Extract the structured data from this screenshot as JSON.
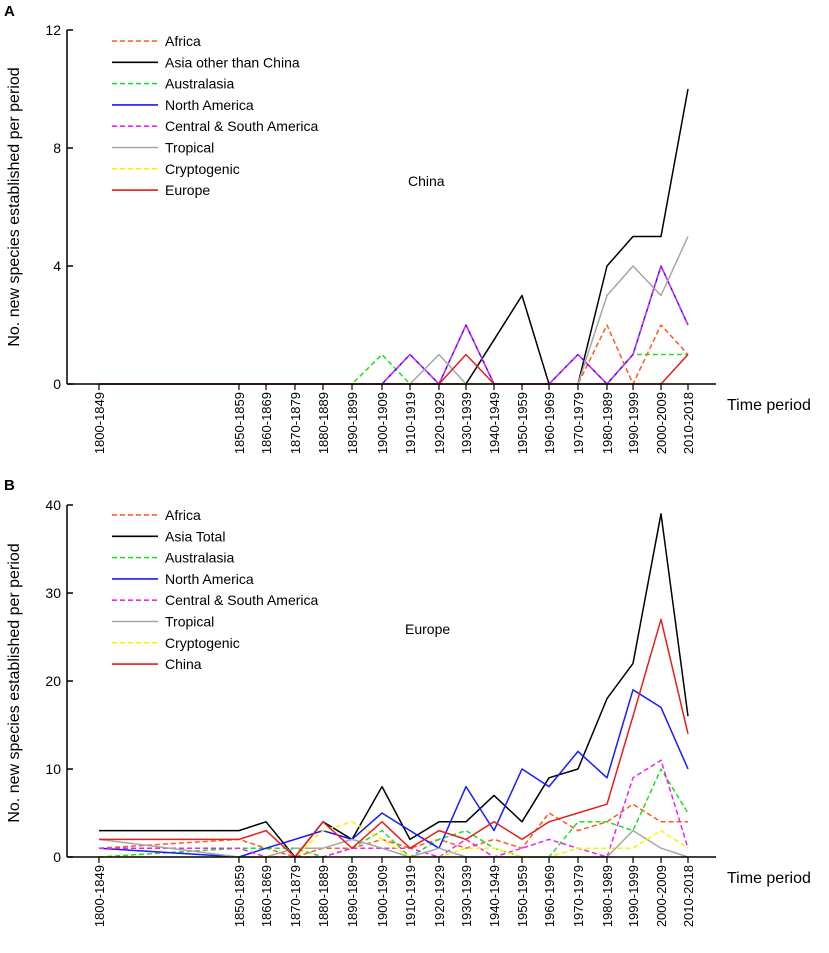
{
  "chart_data": [
    {
      "panel": "A",
      "type": "line",
      "annotation": "China",
      "ylabel": "No. new species established per period",
      "xlabel": "Time period",
      "ylim": [
        0,
        12
      ],
      "yticks": [
        0,
        4,
        8,
        12
      ],
      "categories": [
        "1800-1849",
        "1850-1859",
        "1860-1869",
        "1870-1879",
        "1880-1889",
        "1890-1899",
        "1900-1909",
        "1910-1919",
        "1920-1929",
        "1930-1939",
        "1940-1949",
        "1950-1959",
        "1960-1969",
        "1970-1979",
        "1980-1989",
        "1990-1999",
        "2000-2009",
        "2010-2018"
      ],
      "series": [
        {
          "name": "Africa",
          "color": "#ff5a1e",
          "dashed": true,
          "values": [
            0,
            0,
            0,
            0,
            0,
            0,
            0,
            0,
            0,
            0,
            0,
            0,
            0,
            0,
            2,
            0,
            2,
            1
          ]
        },
        {
          "name": "Asia other than China",
          "color": "#000000",
          "dashed": false,
          "values": [
            0,
            0,
            0,
            0,
            0,
            0,
            0,
            0,
            0,
            0,
            1.5,
            3,
            0,
            0,
            4,
            5,
            5,
            10
          ]
        },
        {
          "name": "Australasia",
          "color": "#22dd22",
          "dashed": true,
          "values": [
            0,
            0,
            0,
            0,
            0,
            0,
            1,
            0,
            0,
            0,
            0,
            0,
            0,
            0,
            0,
            1,
            1,
            1
          ]
        },
        {
          "name": "North America",
          "color": "#1a1aff",
          "dashed": false,
          "values": [
            0,
            0,
            0,
            0,
            0,
            0,
            0,
            1,
            0,
            2,
            0,
            0,
            0,
            1,
            0,
            1,
            4,
            2
          ]
        },
        {
          "name": "Central & South America",
          "color": "#ee22ee",
          "dashed": true,
          "values": [
            0,
            0,
            0,
            0,
            0,
            0,
            0,
            1,
            0,
            2,
            0,
            0,
            0,
            1,
            0,
            1,
            4,
            2
          ]
        },
        {
          "name": "Tropical",
          "color": "#a6a6a6",
          "dashed": false,
          "values": [
            0,
            0,
            0,
            0,
            0,
            0,
            0,
            0,
            1,
            0,
            0,
            0,
            0,
            0,
            3,
            4,
            3,
            5
          ]
        },
        {
          "name": "Cryptogenic",
          "color": "#f5f500",
          "dashed": true,
          "values": [
            0,
            0,
            0,
            0,
            0,
            0,
            0,
            0,
            0,
            0,
            0,
            0,
            0,
            0,
            0,
            0,
            0,
            0
          ]
        },
        {
          "name": "Europe",
          "color": "#e61e1e",
          "dashed": false,
          "values": [
            0,
            0,
            0,
            0,
            0,
            0,
            0,
            0,
            0,
            1,
            0,
            0,
            0,
            0,
            0,
            0,
            0,
            1
          ]
        }
      ]
    },
    {
      "panel": "B",
      "type": "line",
      "annotation": "Europe",
      "ylabel": "No. new species established per period",
      "xlabel": "Time period",
      "ylim": [
        0,
        40
      ],
      "yticks": [
        0,
        10,
        20,
        30,
        40
      ],
      "categories": [
        "1800-1849",
        "1850-1859",
        "1860-1869",
        "1870-1879",
        "1880-1889",
        "1890-1899",
        "1900-1909",
        "1910-1919",
        "1920-1929",
        "1930-1939",
        "1940-1949",
        "1950-1959",
        "1960-1969",
        "1970-1979",
        "1980-1989",
        "1990-1999",
        "2000-2009",
        "2010-2018"
      ],
      "series": [
        {
          "name": "Africa",
          "color": "#ff5a1e",
          "dashed": true,
          "values": [
            1,
            2,
            1,
            0,
            1,
            1,
            2,
            1,
            2,
            1,
            2,
            1,
            5,
            3,
            4,
            6,
            4,
            4
          ]
        },
        {
          "name": "Asia Total",
          "color": "#000000",
          "dashed": false,
          "values": [
            3,
            3,
            4,
            0,
            4,
            2,
            8,
            2,
            4,
            4,
            7,
            4,
            9,
            10,
            18,
            22,
            39,
            16
          ]
        },
        {
          "name": "Australasia",
          "color": "#22dd22",
          "dashed": true,
          "values": [
            0,
            1,
            1,
            1,
            0,
            1,
            3,
            0,
            2,
            3,
            1,
            0,
            0,
            4,
            4,
            3,
            10,
            5
          ]
        },
        {
          "name": "North America",
          "color": "#1a1aff",
          "dashed": false,
          "values": [
            1,
            0,
            1,
            2,
            3,
            2,
            5,
            3,
            1,
            8,
            3,
            10,
            8,
            12,
            9,
            19,
            17,
            10
          ]
        },
        {
          "name": "Central & South America",
          "color": "#ee22ee",
          "dashed": true,
          "values": [
            1,
            1,
            0,
            0,
            0,
            1,
            1,
            1,
            0,
            2,
            0,
            1,
            2,
            1,
            0,
            9,
            11,
            1
          ]
        },
        {
          "name": "Tropical",
          "color": "#a6a6a6",
          "dashed": false,
          "values": [
            2,
            0,
            0,
            1,
            1,
            2,
            1,
            0,
            1,
            0,
            0,
            0,
            0,
            0,
            0,
            3,
            1,
            0
          ]
        },
        {
          "name": "Cryptogenic",
          "color": "#f5f500",
          "dashed": true,
          "values": [
            0,
            0,
            0,
            0,
            3,
            4,
            2,
            0,
            0,
            1,
            1,
            0,
            0,
            1,
            1,
            1,
            3,
            1
          ]
        },
        {
          "name": "China",
          "color": "#e61e1e",
          "dashed": false,
          "values": [
            2,
            2,
            3,
            0,
            4,
            1,
            4,
            1,
            3,
            2,
            4,
            2,
            4,
            5,
            6,
            16,
            27,
            14
          ]
        }
      ]
    }
  ]
}
